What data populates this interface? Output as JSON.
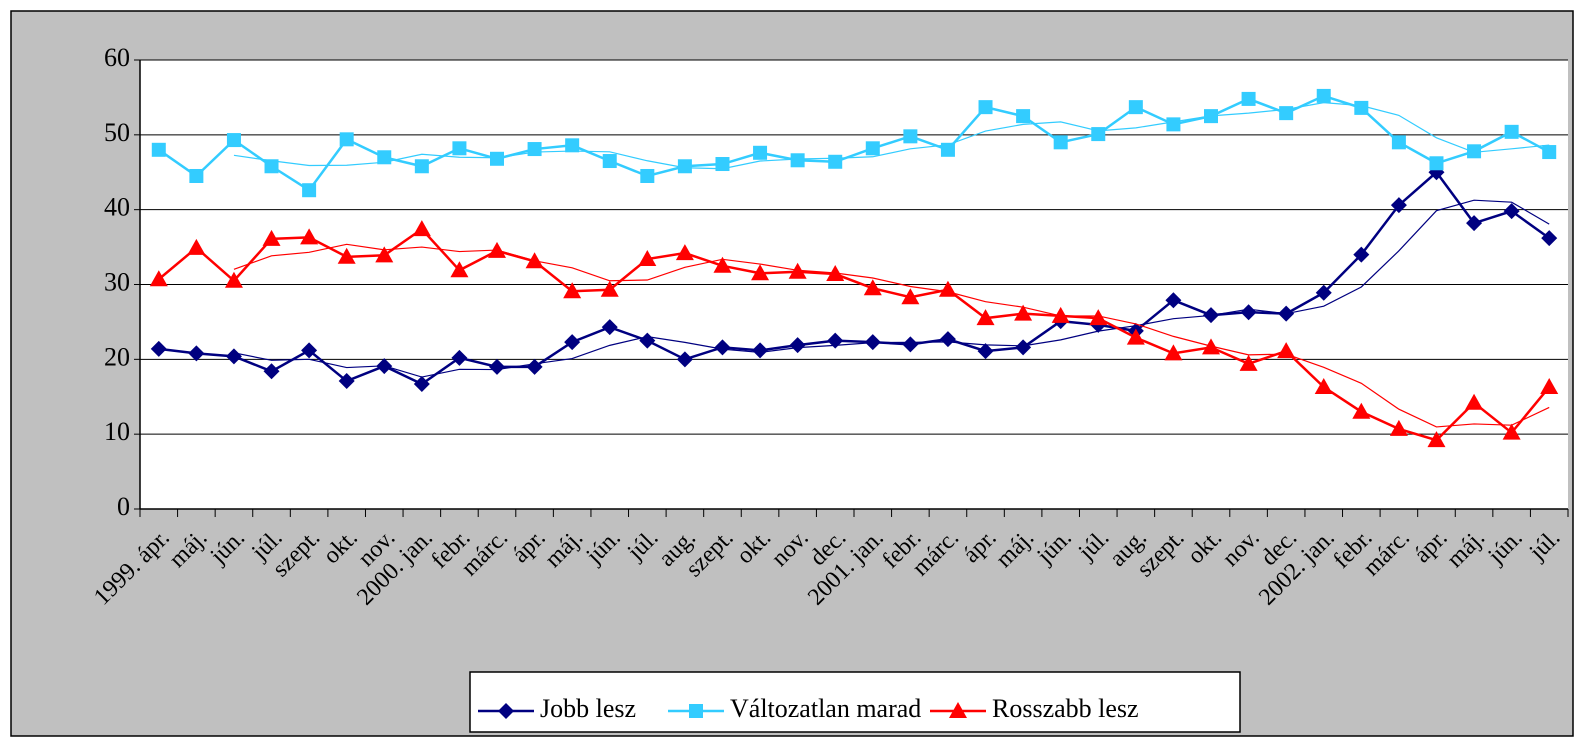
{
  "chart_data": {
    "type": "line",
    "categories": [
      "1999. ápr.",
      "máj.",
      "jún.",
      "júl.",
      "szept.",
      "okt.",
      "nov.",
      "2000. jan.",
      "febr.",
      "márc.",
      "ápr.",
      "máj.",
      "jún.",
      "júl.",
      "aug.",
      "szept.",
      "okt.",
      "nov.",
      "dec.",
      "2001. jan.",
      "febr.",
      "márc.",
      "ápr.",
      "máj.",
      "jún.",
      "júl.",
      "aug.",
      "szept.",
      "okt.",
      "nov.",
      "dec.",
      "2002. jan.",
      "febr.",
      "márc.",
      "ápr.",
      "máj.",
      "jún.",
      "júl."
    ],
    "series": [
      {
        "name": "Jobb lesz",
        "color": "#000080",
        "marker": "diamond",
        "values": [
          21.4,
          20.8,
          20.4,
          18.4,
          21.2,
          17.1,
          19.1,
          16.7,
          20.2,
          19,
          19,
          22.3,
          24.3,
          22.5,
          20,
          21.6,
          21.2,
          21.9,
          22.5,
          22.3,
          22,
          22.7,
          21.1,
          21.6,
          25.1,
          24.6,
          23.8,
          27.9,
          25.9,
          26.3,
          26.1,
          28.9,
          34,
          40.6,
          45,
          38.2,
          39.8,
          36.2
        ]
      },
      {
        "name": "Változatlan marad",
        "color": "#33ccff",
        "marker": "square",
        "values": [
          48,
          44.5,
          49.3,
          45.8,
          42.6,
          49.4,
          47,
          45.8,
          48.2,
          46.8,
          48.1,
          48.6,
          46.5,
          44.5,
          45.8,
          46.1,
          47.6,
          46.6,
          46.4,
          48.2,
          49.8,
          48,
          53.7,
          52.5,
          49,
          50.1,
          53.7,
          51.4,
          52.5,
          54.8,
          52.9,
          55.2,
          53.6,
          49,
          46.2,
          47.8,
          50.4,
          47.7
        ]
      },
      {
        "name": "Rosszabb lesz",
        "color": "#ff0000",
        "marker": "triangle",
        "values": [
          30.7,
          34.9,
          30.5,
          36.1,
          36.3,
          33.7,
          33.9,
          37.4,
          31.9,
          34.5,
          33.1,
          29.1,
          29.3,
          33.4,
          34.2,
          32.5,
          31.5,
          31.7,
          31.4,
          29.5,
          28.3,
          29.3,
          25.5,
          26.1,
          25.8,
          25.5,
          22.9,
          20.8,
          21.6,
          19.4,
          21.1,
          16.3,
          13,
          10.7,
          9.2,
          14.2,
          10.2,
          16.3
        ]
      }
    ],
    "trend_period": 3,
    "ylim": [
      0,
      60
    ],
    "yticks": [
      0,
      10,
      20,
      30,
      40,
      50,
      60
    ],
    "grid": true,
    "legend": "bottom"
  }
}
